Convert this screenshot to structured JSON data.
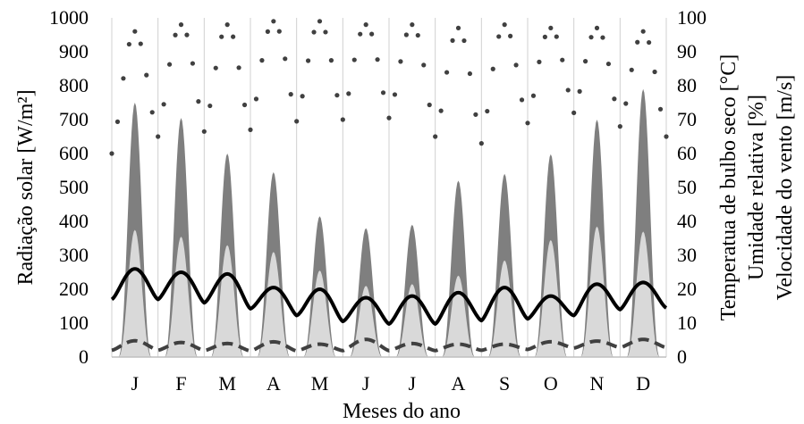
{
  "chart_data": {
    "type": "area",
    "xlabel": "Meses do ano",
    "ylabel_left": "Radiação solar [W/m²]",
    "ylabel_right": [
      "Temperatua de bulbo seco [°C]",
      "Umidade relativa [%]",
      "Velocidade do vento [m/s]"
    ],
    "categories": [
      "J",
      "F",
      "M",
      "A",
      "M",
      "J",
      "J",
      "A",
      "S",
      "O",
      "N",
      "D"
    ],
    "ylim_left": [
      0,
      1000
    ],
    "ylim_right": [
      0,
      100
    ],
    "yticks_left": [
      "0",
      "100",
      "200",
      "300",
      "400",
      "500",
      "600",
      "700",
      "800",
      "900",
      "1000"
    ],
    "yticks_right": [
      "0",
      "10",
      "20",
      "30",
      "40",
      "50",
      "60",
      "70",
      "80",
      "90",
      "100"
    ],
    "grid": "vertical",
    "legend": "none",
    "colors": {
      "radiation_global": "#7f7f7f",
      "radiation_diffuse": "#d9d9d9",
      "temperature": "#000000",
      "humidity": "#404040",
      "wind": "#404040",
      "grid": "#d0d0d0"
    },
    "series": [
      {
        "axis": "left",
        "style": "area-dark",
        "values": [
          750,
          705,
          600,
          545,
          415,
          380,
          390,
          520,
          540,
          598,
          700,
          790
        ]
      },
      {
        "axis": "left",
        "style": "area-light",
        "values": [
          375,
          355,
          330,
          310,
          255,
          210,
          215,
          240,
          285,
          345,
          385,
          370
        ]
      },
      {
        "axis": "right",
        "style": "solid-line",
        "high": [
          26,
          25,
          24.5,
          20.5,
          20,
          17.5,
          18,
          19,
          20.5,
          18,
          21.5,
          22
        ],
        "low": [
          17,
          17,
          15,
          13.5,
          11,
          10,
          9.5,
          10,
          11.5,
          11,
          13.5,
          14.5
        ]
      },
      {
        "axis": "right",
        "style": "dotted-line",
        "high": [
          96,
          98,
          98,
          99,
          99,
          98,
          98,
          97,
          98,
          97,
          97,
          96
        ],
        "low": [
          60,
          70,
          63,
          71,
          68,
          72,
          69,
          61,
          65,
          73,
          71,
          65
        ]
      },
      {
        "axis": "right",
        "style": "dashed-line",
        "high": [
          4.8,
          4.3,
          4,
          4.5,
          3.8,
          5.2,
          4,
          3.8,
          3.8,
          4.5,
          4.7,
          5.2
        ],
        "low": [
          2,
          2,
          1.8,
          1.8,
          1.8,
          2,
          1.8,
          2,
          2,
          2.5,
          2.8,
          2.8
        ]
      }
    ]
  }
}
